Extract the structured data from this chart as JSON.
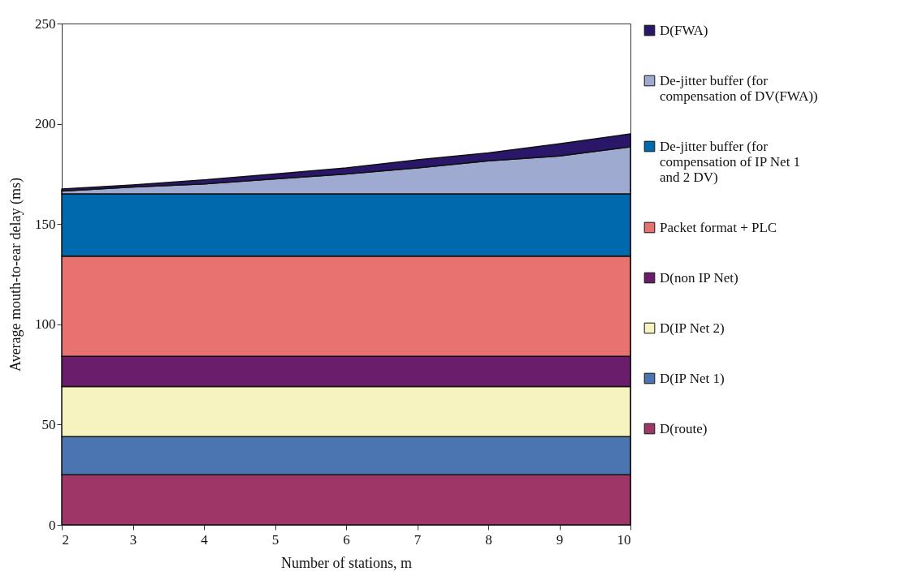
{
  "chart_data": {
    "type": "area",
    "stacked": true,
    "xlabel": "Number of stations, m",
    "ylabel": "Average mouth-to-ear delay (ms)",
    "x": [
      2,
      3,
      4,
      5,
      6,
      7,
      8,
      9,
      10
    ],
    "xlim": [
      2,
      10
    ],
    "xticks": [
      2,
      3,
      4,
      5,
      6,
      7,
      8,
      9,
      10
    ],
    "ylim": [
      0,
      250
    ],
    "yticks": [
      0,
      50,
      100,
      150,
      200,
      250
    ],
    "grid": false,
    "legend": "right",
    "series": [
      {
        "name": "D(route)",
        "color": "#9e3668",
        "values": [
          25,
          25,
          25,
          25,
          25,
          25,
          25,
          25,
          25
        ]
      },
      {
        "name": "D(IP Net 1)",
        "color": "#4a75b0",
        "values": [
          19,
          19,
          19,
          19,
          19,
          19,
          19,
          19,
          19
        ]
      },
      {
        "name": "D(IP Net 2)",
        "color": "#f7f3c0",
        "values": [
          25,
          25,
          25,
          25,
          25,
          25,
          25,
          25,
          25
        ]
      },
      {
        "name": "D(non IP Net)",
        "color": "#6a1d6a",
        "values": [
          15,
          15,
          15,
          15,
          15,
          15,
          15,
          15,
          15
        ]
      },
      {
        "name": "Packet format + PLC",
        "color": "#e87270",
        "values": [
          50,
          50,
          50,
          50,
          50,
          50,
          50,
          50,
          50
        ]
      },
      {
        "name": "De-jitter buffer (for compensation of IP Net 1 and 2 DV)",
        "color": "#0068ad",
        "values": [
          31,
          31,
          31,
          31,
          31,
          31,
          31,
          31,
          31
        ]
      },
      {
        "name": "De-jitter buffer (for compensation of DV(FWA))",
        "color": "#9eaad0",
        "values": [
          1.5,
          3.5,
          5,
          7.5,
          10,
          13,
          16.5,
          19,
          23.5
        ]
      },
      {
        "name": "D(FWA)",
        "color": "#2a176a",
        "values": [
          1,
          1,
          2,
          2.5,
          3,
          4,
          4,
          6,
          6.5
        ]
      }
    ]
  }
}
